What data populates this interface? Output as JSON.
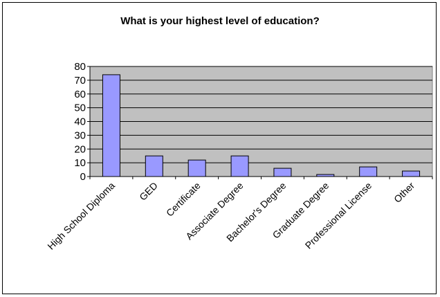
{
  "chart_data": {
    "type": "bar",
    "title": "What is your highest level of education?",
    "xlabel": "",
    "ylabel": "",
    "categories": [
      "High School Diploma",
      "GED",
      "Certificate",
      "Associate Degree",
      "Bachelor's Degree",
      "Graduate Degree",
      "Professional License",
      "Other"
    ],
    "values": [
      74,
      15,
      12,
      15,
      6,
      1.5,
      7,
      4
    ],
    "ylim": [
      0,
      80
    ],
    "yticks": [
      0,
      10,
      20,
      30,
      40,
      50,
      60,
      70,
      80
    ],
    "grid": true,
    "legend": "none",
    "colors": {
      "bar": "#9999ff",
      "plot_background": "#c0c0c0",
      "gridline": "#000000"
    }
  }
}
